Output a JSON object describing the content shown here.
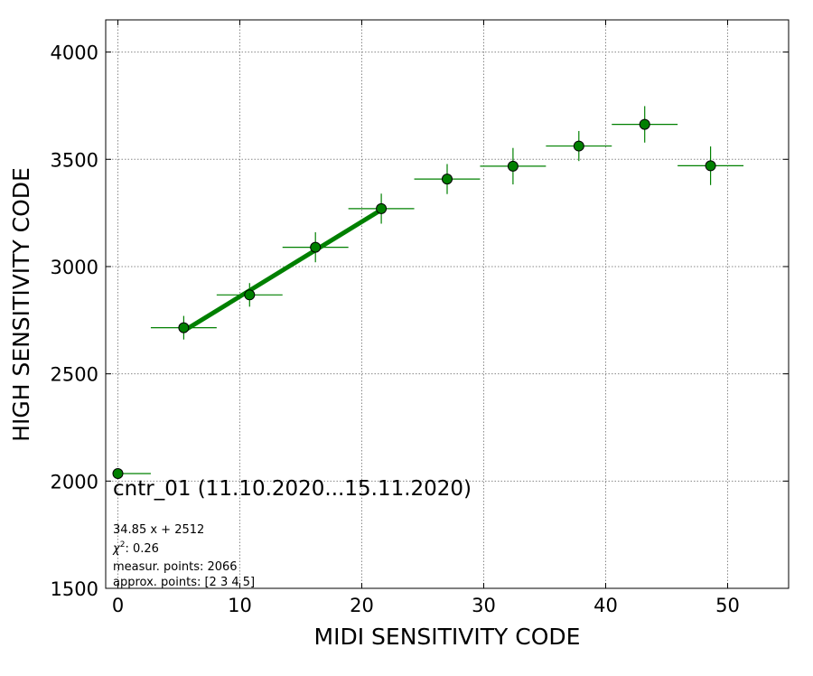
{
  "chart_data": {
    "type": "scatter",
    "xlabel": "MIDI SENSITIVITY CODE",
    "ylabel": "HIGH SENSITIVITY CODE",
    "xlim": [
      -1,
      55
    ],
    "ylim": [
      1500,
      4150
    ],
    "xticks": [
      0,
      10,
      20,
      30,
      40,
      50
    ],
    "yticks": [
      1500,
      2000,
      2500,
      3000,
      3500,
      4000
    ],
    "grid": true,
    "grid_style": "dotted",
    "marker_color": "#008000",
    "fit_color": "#008000",
    "points": [
      {
        "x": 0.0,
        "y": 2035,
        "xerr_low": 0.0,
        "xerr_high": 2.7,
        "yerr": 0
      },
      {
        "x": 5.4,
        "y": 2715,
        "xerr_low": 2.7,
        "xerr_high": 2.7,
        "yerr": 55
      },
      {
        "x": 10.8,
        "y": 2868,
        "xerr_low": 2.7,
        "xerr_high": 2.7,
        "yerr": 55
      },
      {
        "x": 16.2,
        "y": 3090,
        "xerr_low": 2.7,
        "xerr_high": 2.7,
        "yerr": 70
      },
      {
        "x": 21.6,
        "y": 3270,
        "xerr_low": 2.7,
        "xerr_high": 2.7,
        "yerr": 70
      },
      {
        "x": 27.0,
        "y": 3408,
        "xerr_low": 2.7,
        "xerr_high": 2.7,
        "yerr": 70
      },
      {
        "x": 32.4,
        "y": 3468,
        "xerr_low": 2.7,
        "xerr_high": 2.7,
        "yerr": 85
      },
      {
        "x": 37.8,
        "y": 3562,
        "xerr_low": 2.7,
        "xerr_high": 2.7,
        "yerr": 70
      },
      {
        "x": 43.2,
        "y": 3663,
        "xerr_low": 2.7,
        "xerr_high": 2.7,
        "yerr": 85
      },
      {
        "x": 48.6,
        "y": 3470,
        "xerr_low": 2.7,
        "xerr_high": 2.7,
        "yerr": 90
      }
    ],
    "fit_line": {
      "slope": 34.85,
      "intercept": 2512,
      "x_range": [
        5.4,
        21.6
      ]
    },
    "annotation_title": "cntr_01 (11.10.2020...15.11.2020)",
    "annotation_lines": {
      "equation": "34.85 x + 2512",
      "chi_prefix": "χ",
      "chi_sup": "2",
      "chi_value": ": 0.26",
      "measured": "measur. points: 2066",
      "approx": "approx. points: [2 3 4 5]"
    }
  }
}
